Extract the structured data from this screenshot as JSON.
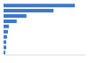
{
  "chart_data": {
    "type": "bar",
    "orientation": "horizontal",
    "categories": [
      null,
      null,
      null,
      null,
      null,
      null,
      null,
      null,
      null,
      null
    ],
    "values": [
      87,
      61,
      28,
      16,
      6.5,
      5.4,
      4.3,
      3.3,
      3.3,
      2.2
    ],
    "color": "#3f77c9",
    "xlim": [
      0,
      100
    ],
    "xticks": [],
    "grid": false,
    "tick_labels": false
  }
}
